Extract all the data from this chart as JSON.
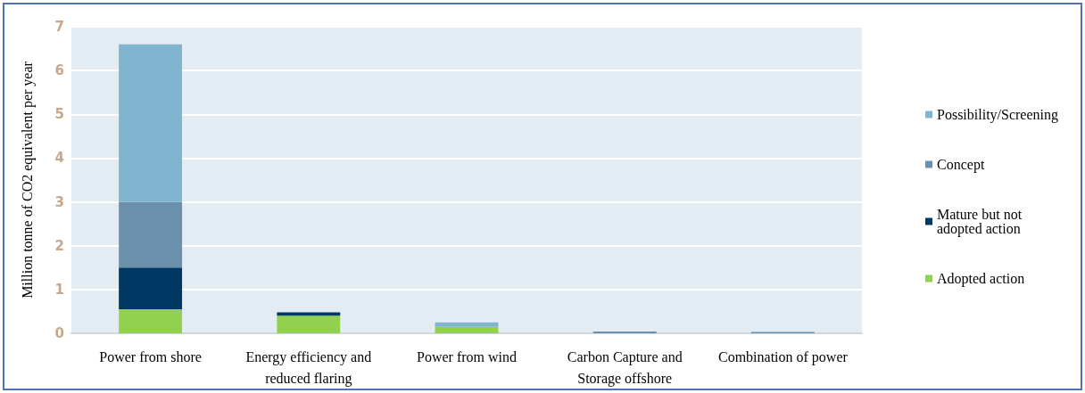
{
  "chart_data": {
    "type": "bar",
    "stacked": true,
    "ylabel": "Million tonne of CO2 equivalent per year",
    "categories": [
      "Power from shore",
      "Energy efficiency and\nreduced flaring",
      "Power from wind",
      "Carbon Capture and\nStorage offshore",
      "Combination of power"
    ],
    "series": [
      {
        "name": "Adopted action",
        "color": "#92d050",
        "values": [
          0.55,
          0.4,
          0.15,
          null,
          null
        ]
      },
      {
        "name": "Mature but not\nadopted action",
        "color": "#003864",
        "values": [
          0.95,
          0.08,
          null,
          null,
          null
        ]
      },
      {
        "name": "Concept",
        "color": "#6a90ab",
        "values": [
          1.5,
          null,
          null,
          0.04,
          0.03
        ]
      },
      {
        "name": "Possibility/Screening",
        "color": "#80b5cf",
        "values": [
          3.6,
          null,
          0.1,
          null,
          null
        ]
      }
    ],
    "ylim": [
      0,
      7
    ],
    "yticks": [
      0,
      1,
      2,
      3,
      4,
      5,
      6,
      7
    ],
    "grid": "y",
    "legend": "right"
  }
}
